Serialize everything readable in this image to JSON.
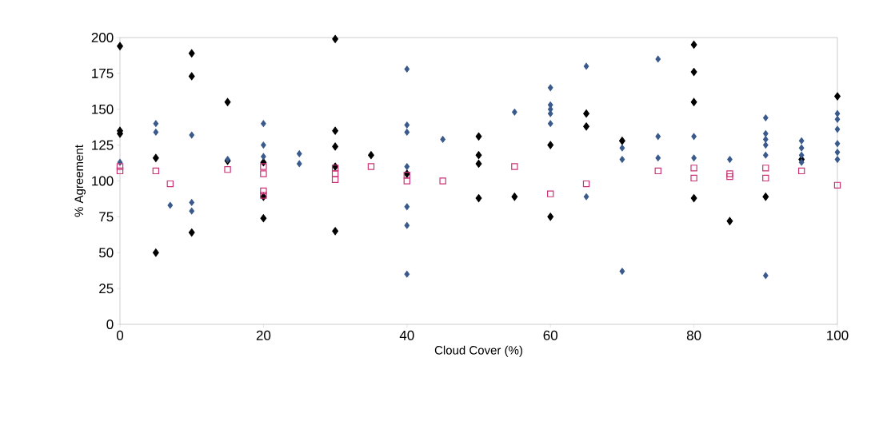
{
  "chart_data": {
    "type": "scatter",
    "xlabel": "Cloud Cover (%)",
    "ylabel": "% Agreement",
    "xlim": [
      0,
      100
    ],
    "xticks": [
      0,
      20,
      40,
      60,
      80,
      100
    ],
    "ylim": [
      0,
      200
    ],
    "yticks": [
      0,
      25,
      50,
      75,
      100,
      125,
      150,
      175,
      200
    ],
    "grid": false,
    "series": [
      {
        "color": "#000000",
        "marker": "diamond",
        "x": [
          0,
          0,
          0,
          5,
          5,
          10,
          10,
          10,
          15,
          15,
          20,
          20,
          20,
          30,
          30,
          30,
          30,
          30,
          35,
          40,
          50,
          50,
          50,
          50,
          55,
          60,
          60,
          65,
          65,
          70,
          80,
          80,
          80,
          80,
          85,
          90,
          95,
          100
        ],
        "values": [
          194,
          135,
          133,
          116,
          50,
          189,
          173,
          64,
          155,
          114,
          74,
          89,
          113,
          199,
          135,
          124,
          65,
          110,
          118,
          105,
          131,
          118,
          112,
          88,
          89,
          125,
          75,
          147,
          138,
          128,
          195,
          176,
          155,
          88,
          72,
          89,
          115,
          159
        ]
      },
      {
        "color": "#3a5a8c",
        "marker": "diamond",
        "x": [
          0,
          5,
          5,
          7,
          10,
          10,
          10,
          15,
          20,
          20,
          20,
          25,
          25,
          40,
          40,
          40,
          40,
          40,
          40,
          40,
          45,
          55,
          60,
          60,
          60,
          60,
          60,
          65,
          65,
          70,
          70,
          70,
          75,
          75,
          75,
          80,
          80,
          85,
          90,
          90,
          90,
          90,
          90,
          90,
          95,
          95,
          95,
          95,
          100,
          100,
          100,
          100,
          100,
          100
        ],
        "values": [
          113,
          140,
          134,
          83,
          132,
          85,
          79,
          115,
          140,
          125,
          117,
          119,
          112,
          178,
          139,
          134,
          110,
          82,
          69,
          35,
          129,
          148,
          165,
          153,
          150,
          147,
          140,
          180,
          89,
          123,
          115,
          37,
          185,
          131,
          116,
          131,
          116,
          115,
          144,
          133,
          129,
          125,
          118,
          34,
          128,
          123,
          118,
          113,
          147,
          143,
          136,
          126,
          120,
          115
        ]
      },
      {
        "color": "#cc3377",
        "marker": "square",
        "x": [
          0,
          0,
          5,
          7,
          15,
          20,
          20,
          20,
          20,
          30,
          30,
          30,
          35,
          40,
          40,
          45,
          55,
          60,
          65,
          75,
          80,
          80,
          85,
          85,
          90,
          90,
          95,
          100
        ],
        "values": [
          110,
          107,
          107,
          98,
          108,
          110,
          105,
          93,
          90,
          109,
          105,
          101,
          110,
          104,
          100,
          100,
          110,
          91,
          98,
          107,
          109,
          102,
          105,
          103,
          109,
          102,
          107,
          97
        ]
      }
    ]
  }
}
